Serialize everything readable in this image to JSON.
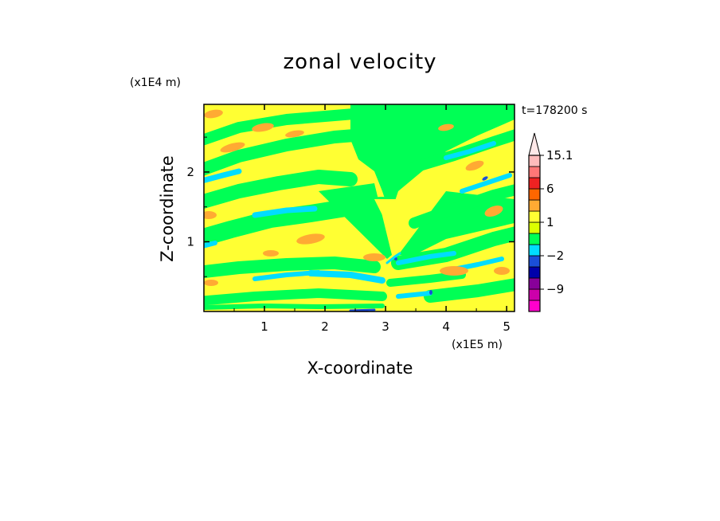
{
  "chart_data": {
    "type": "heatmap",
    "title": "zonal velocity",
    "xlabel": "X-coordinate",
    "ylabel": "Z-coordinate",
    "x_unit": "(x1E5 m)",
    "y_unit": "(x1E4 m)",
    "time_label": "t=178200 s",
    "xlim": [
      0,
      5.13
    ],
    "ylim": [
      0,
      2.97
    ],
    "x_ticks": [
      1,
      2,
      3,
      4,
      5
    ],
    "y_ticks": [
      1,
      2
    ],
    "x_tick_labels": [
      "1",
      "2",
      "3",
      "4",
      "5"
    ],
    "y_tick_labels": [
      "1",
      "2"
    ],
    "colorbar": {
      "levels": [
        -15,
        -12,
        -9,
        -6,
        -3,
        -2,
        -1,
        0,
        1,
        2,
        3,
        6,
        9,
        12,
        15.1
      ],
      "colors": [
        "#ff00cc",
        "#cc00aa",
        "#880099",
        "#0000aa",
        "#1a4fd8",
        "#00ddff",
        "#00ff55",
        "#dcff00",
        "#ffff33",
        "#ffaa33",
        "#ff6600",
        "#ee2222",
        "#ff7777",
        "#ffbbbb"
      ],
      "top_extend_color": "#ffe8e8",
      "labels": [
        {
          "value": 15.1,
          "text": "15.1"
        },
        {
          "value": 6,
          "text": "6"
        },
        {
          "value": 1,
          "text": "1"
        },
        {
          "value": -2,
          "text": "−2"
        },
        {
          "value": -9,
          "text": "−9"
        }
      ]
    },
    "field_colors": {
      "yellow": "#ffff33",
      "lime": "#dcff00",
      "green": "#00ff55",
      "cyan": "#00ddff",
      "orange": "#ffaa33",
      "blue": "#1a4fd8",
      "navy": "#0000aa"
    }
  }
}
